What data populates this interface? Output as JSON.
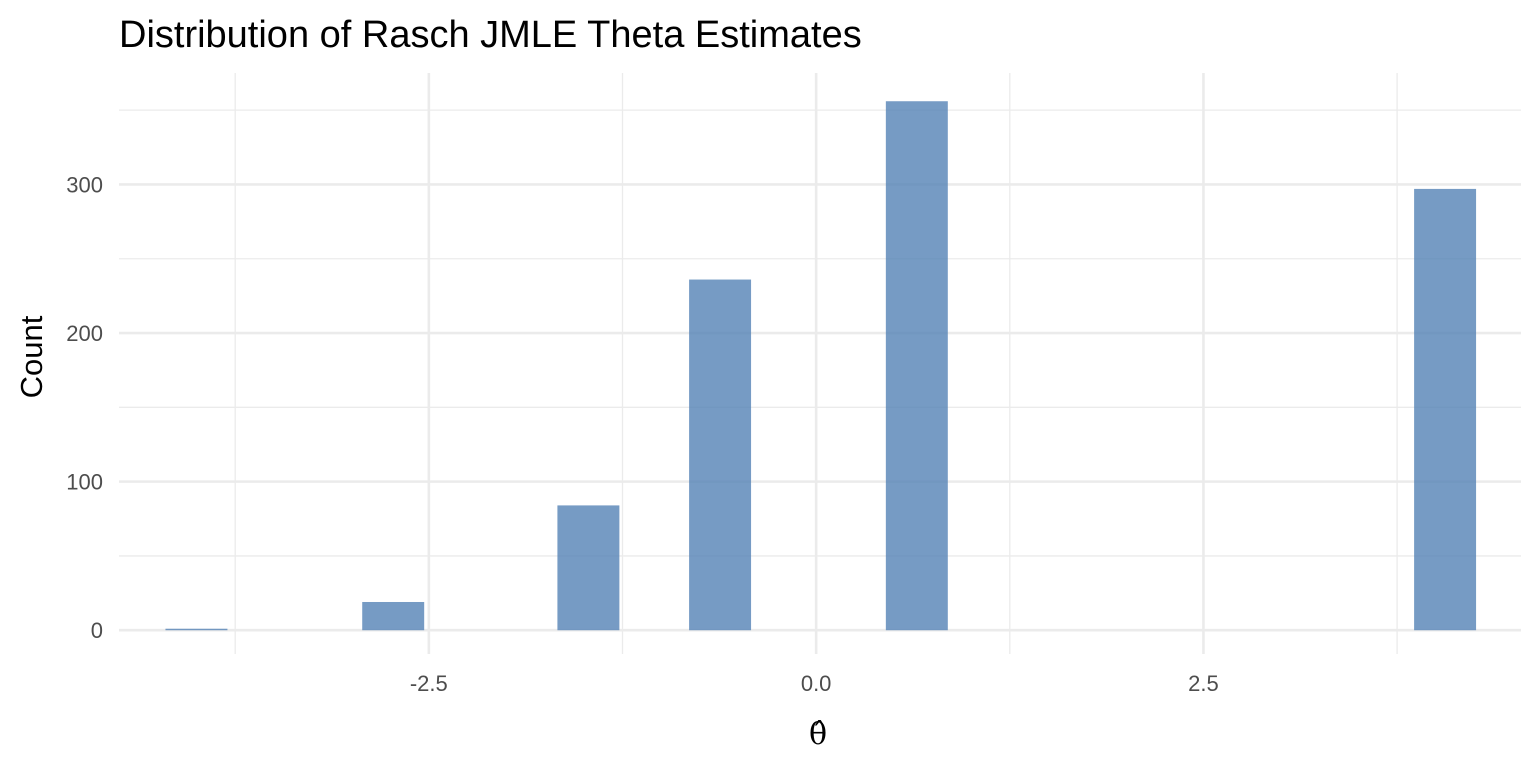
{
  "chart_data": {
    "type": "bar",
    "title": "Distribution of Rasch JMLE Theta Estimates",
    "xlabel": "θ̂",
    "ylabel": "Count",
    "xlim": [
      -4.5,
      4.55
    ],
    "ylim": [
      -16,
      375
    ],
    "x_ticks": [
      -2.5,
      0.0,
      2.5
    ],
    "x_tick_labels": [
      "-2.5",
      "0.0",
      "2.5"
    ],
    "x_minor_ticks": [
      -3.75,
      -1.25,
      1.25,
      3.75
    ],
    "y_ticks": [
      0,
      100,
      200,
      300
    ],
    "y_tick_labels": [
      "0",
      "100",
      "200",
      "300"
    ],
    "y_minor_ticks": [
      50,
      150,
      250,
      350
    ],
    "grid": true,
    "bins": [
      {
        "x_start": -4.2,
        "x_end": -3.8,
        "count": 1
      },
      {
        "x_start": -2.93,
        "x_end": -2.53,
        "count": 19
      },
      {
        "x_start": -1.67,
        "x_end": -1.27,
        "count": 84
      },
      {
        "x_start": -0.82,
        "x_end": -0.42,
        "count": 236
      },
      {
        "x_start": 0.45,
        "x_end": 0.85,
        "count": 356
      },
      {
        "x_start": 3.86,
        "x_end": 4.26,
        "count": 297
      }
    ],
    "colors": {
      "bar": "#4f7fb3",
      "grid": "#ebebeb",
      "tick_label": "#4d4d4d"
    }
  }
}
